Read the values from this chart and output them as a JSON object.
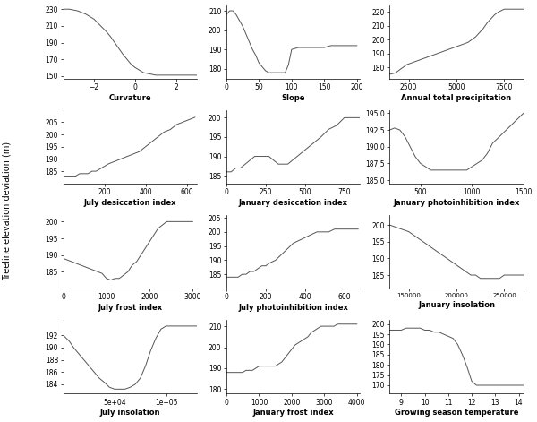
{
  "title": "",
  "ylabel": "Treeline elevation deviation (m)",
  "background_color": "#ffffff",
  "line_color": "#555555",
  "line_width": 0.7,
  "subplots": [
    {
      "xlabel": "Curvature",
      "xlim": [
        -3.5,
        3.0
      ],
      "ylim": [
        147,
        235
      ],
      "yticks": [
        150,
        170,
        190,
        210,
        230
      ],
      "xticks": [
        -2,
        0,
        2
      ],
      "x": [
        -3.5,
        -3.2,
        -3.0,
        -2.8,
        -2.6,
        -2.4,
        -2.2,
        -2.0,
        -1.8,
        -1.6,
        -1.4,
        -1.2,
        -1.0,
        -0.8,
        -0.6,
        -0.4,
        -0.2,
        0.0,
        0.2,
        0.4,
        0.6,
        0.8,
        1.0,
        1.2,
        1.4,
        1.6,
        1.8,
        2.0,
        2.2,
        2.4,
        2.6,
        2.8,
        3.0
      ],
      "y": [
        230,
        230,
        229,
        228,
        226,
        224,
        221,
        218,
        213,
        208,
        203,
        197,
        190,
        183,
        176,
        170,
        164,
        160,
        157,
        154,
        153,
        152,
        151,
        151,
        151,
        151,
        151,
        151,
        151,
        151,
        151,
        151,
        151
      ]
    },
    {
      "xlabel": "Slope",
      "xlim": [
        0,
        205
      ],
      "ylim": [
        175,
        213
      ],
      "yticks": [
        180,
        190,
        200,
        210
      ],
      "xticks": [
        0,
        50,
        100,
        150,
        200
      ],
      "x": [
        0,
        5,
        10,
        15,
        20,
        25,
        30,
        35,
        40,
        45,
        50,
        55,
        60,
        65,
        70,
        75,
        80,
        85,
        90,
        95,
        100,
        110,
        120,
        130,
        140,
        150,
        160,
        170,
        180,
        190,
        200
      ],
      "y": [
        208,
        210,
        210,
        208,
        205,
        202,
        198,
        194,
        190,
        187,
        183,
        181,
        179,
        178,
        178,
        178,
        178,
        178,
        178,
        182,
        190,
        191,
        191,
        191,
        191,
        191,
        192,
        192,
        192,
        192,
        192
      ]
    },
    {
      "xlabel": "Annual total precipitation",
      "xlim": [
        1500,
        8500
      ],
      "ylim": [
        172,
        225
      ],
      "yticks": [
        180,
        190,
        200,
        210,
        220
      ],
      "xticks": [
        2500,
        5000,
        7500
      ],
      "x": [
        1500,
        1800,
        2000,
        2200,
        2400,
        2600,
        2800,
        3000,
        3200,
        3400,
        3600,
        3800,
        4000,
        4200,
        4400,
        4600,
        4800,
        5000,
        5200,
        5400,
        5600,
        5800,
        6000,
        6200,
        6400,
        6600,
        6800,
        7000,
        7200,
        7500,
        8000,
        8500
      ],
      "y": [
        175,
        176,
        178,
        180,
        182,
        183,
        184,
        185,
        186,
        187,
        188,
        189,
        190,
        191,
        192,
        193,
        194,
        195,
        196,
        197,
        198,
        200,
        202,
        205,
        208,
        212,
        215,
        218,
        220,
        222,
        222,
        222
      ]
    },
    {
      "xlabel": "July desiccation index",
      "xlim": [
        0,
        650
      ],
      "ylim": [
        180,
        210
      ],
      "yticks": [
        185,
        190,
        195,
        200,
        205
      ],
      "xticks": [
        200,
        400,
        600
      ],
      "x": [
        0,
        10,
        20,
        40,
        60,
        80,
        100,
        120,
        140,
        160,
        180,
        200,
        220,
        250,
        280,
        310,
        340,
        370,
        400,
        430,
        460,
        490,
        520,
        550,
        580,
        610,
        640
      ],
      "y": [
        183,
        183,
        183,
        183,
        183,
        184,
        184,
        184,
        185,
        185,
        186,
        187,
        188,
        189,
        190,
        191,
        192,
        193,
        195,
        197,
        199,
        201,
        202,
        204,
        205,
        206,
        207
      ]
    },
    {
      "xlabel": "January desiccation index",
      "xlim": [
        0,
        850
      ],
      "ylim": [
        183,
        202
      ],
      "yticks": [
        185,
        190,
        195,
        200
      ],
      "xticks": [
        0,
        250,
        500,
        750
      ],
      "x": [
        0,
        30,
        60,
        90,
        120,
        150,
        180,
        210,
        240,
        270,
        300,
        330,
        360,
        390,
        420,
        450,
        480,
        510,
        540,
        570,
        600,
        650,
        700,
        750,
        800,
        850
      ],
      "y": [
        186,
        186,
        187,
        187,
        188,
        189,
        190,
        190,
        190,
        190,
        189,
        188,
        188,
        188,
        189,
        190,
        191,
        192,
        193,
        194,
        195,
        197,
        198,
        200,
        200,
        200
      ]
    },
    {
      "xlabel": "January photoinhibition index",
      "xlim": [
        200,
        1500
      ],
      "ylim": [
        184.5,
        195.5
      ],
      "yticks": [
        185.0,
        187.5,
        190.0,
        192.5,
        195.0
      ],
      "xticks": [
        500,
        1000,
        1500
      ],
      "x": [
        200,
        250,
        300,
        350,
        400,
        450,
        500,
        550,
        600,
        650,
        700,
        750,
        800,
        850,
        900,
        950,
        1000,
        1050,
        1100,
        1150,
        1200,
        1300,
        1400,
        1500
      ],
      "y": [
        192.5,
        192.8,
        192.5,
        191.5,
        190.0,
        188.5,
        187.5,
        187.0,
        186.5,
        186.5,
        186.5,
        186.5,
        186.5,
        186.5,
        186.5,
        186.5,
        187.0,
        187.5,
        188.0,
        189.0,
        190.5,
        192.0,
        193.5,
        195.0
      ]
    },
    {
      "xlabel": "July frost index",
      "xlim": [
        0,
        3100
      ],
      "ylim": [
        180,
        202
      ],
      "yticks": [
        185,
        190,
        195,
        200
      ],
      "xticks": [
        0,
        1000,
        2000,
        3000
      ],
      "x": [
        0,
        100,
        200,
        300,
        400,
        500,
        600,
        700,
        800,
        900,
        1000,
        1100,
        1200,
        1300,
        1400,
        1500,
        1600,
        1700,
        1800,
        1900,
        2000,
        2100,
        2200,
        2300,
        2400,
        2500,
        2600,
        2700,
        2800,
        2900,
        3000
      ],
      "y": [
        189,
        188.5,
        188,
        187.5,
        187,
        186.5,
        186,
        185.5,
        185,
        184.5,
        183,
        182.5,
        183,
        183,
        184,
        185,
        187,
        188,
        190,
        192,
        194,
        196,
        198,
        199,
        200,
        200,
        200,
        200,
        200,
        200,
        200
      ]
    },
    {
      "xlabel": "July photoinhibition index",
      "xlim": [
        0,
        680
      ],
      "ylim": [
        180,
        206
      ],
      "yticks": [
        185,
        190,
        195,
        200,
        205
      ],
      "xticks": [
        0,
        200,
        400,
        600
      ],
      "x": [
        0,
        20,
        40,
        60,
        80,
        100,
        120,
        140,
        160,
        180,
        200,
        220,
        250,
        280,
        310,
        340,
        370,
        400,
        430,
        460,
        490,
        520,
        550,
        580,
        610,
        640,
        670
      ],
      "y": [
        184,
        184,
        184,
        184,
        185,
        185,
        186,
        186,
        187,
        188,
        188,
        189,
        190,
        192,
        194,
        196,
        197,
        198,
        199,
        200,
        200,
        200,
        201,
        201,
        201,
        201,
        201
      ]
    },
    {
      "xlabel": "January insolation",
      "xlim": [
        130000,
        270000
      ],
      "ylim": [
        181,
        203
      ],
      "yticks": [
        185,
        190,
        195,
        200
      ],
      "xticks": [
        150000,
        200000,
        250000
      ],
      "x": [
        130000,
        140000,
        150000,
        155000,
        160000,
        165000,
        170000,
        175000,
        180000,
        185000,
        190000,
        195000,
        200000,
        205000,
        210000,
        215000,
        220000,
        225000,
        230000,
        235000,
        240000,
        245000,
        250000,
        255000,
        260000,
        265000,
        270000
      ],
      "y": [
        200,
        199,
        198,
        197,
        196,
        195,
        194,
        193,
        192,
        191,
        190,
        189,
        188,
        187,
        186,
        185,
        185,
        184,
        184,
        184,
        184,
        184,
        185,
        185,
        185,
        185,
        185
      ]
    },
    {
      "xlabel": "July insolation",
      "xlim": [
        0,
        130000
      ],
      "ylim": [
        182.5,
        194.5
      ],
      "yticks": [
        184,
        186,
        188,
        190,
        192
      ],
      "xticks": [
        50000,
        100000
      ],
      "xtick_labels": [
        "5e+04",
        "1e+05"
      ],
      "x": [
        0,
        3000,
        6000,
        10000,
        15000,
        20000,
        25000,
        30000,
        35000,
        40000,
        45000,
        50000,
        55000,
        60000,
        65000,
        70000,
        75000,
        80000,
        85000,
        90000,
        95000,
        100000,
        105000,
        110000,
        115000,
        120000,
        125000,
        130000
      ],
      "y": [
        192.0,
        191.5,
        191.0,
        190.0,
        189.0,
        188.0,
        187.0,
        186.0,
        185.0,
        184.3,
        183.5,
        183.2,
        183.2,
        183.2,
        183.5,
        184.0,
        185.0,
        187.0,
        189.5,
        191.5,
        193.0,
        193.5,
        193.5,
        193.5,
        193.5,
        193.5,
        193.5,
        193.5
      ]
    },
    {
      "xlabel": "January frost index",
      "xlim": [
        0,
        4100
      ],
      "ylim": [
        178,
        213
      ],
      "yticks": [
        180,
        190,
        200,
        210
      ],
      "xticks": [
        0,
        1000,
        2000,
        3000,
        4000
      ],
      "x": [
        0,
        100,
        200,
        300,
        400,
        500,
        600,
        700,
        800,
        900,
        1000,
        1100,
        1200,
        1300,
        1400,
        1500,
        1600,
        1700,
        1800,
        1900,
        2000,
        2100,
        2200,
        2300,
        2400,
        2500,
        2600,
        2700,
        2800,
        2900,
        3000,
        3100,
        3200,
        3300,
        3400,
        3500,
        3600,
        3700,
        3800,
        3900,
        4000
      ],
      "y": [
        188,
        188,
        188,
        188,
        188,
        188,
        189,
        189,
        189,
        190,
        191,
        191,
        191,
        191,
        191,
        191,
        192,
        193,
        195,
        197,
        199,
        201,
        202,
        203,
        204,
        205,
        207,
        208,
        209,
        210,
        210,
        210,
        210,
        210,
        211,
        211,
        211,
        211,
        211,
        211,
        211
      ]
    },
    {
      "xlabel": "Growing season temperature",
      "xlim": [
        8.5,
        14.2
      ],
      "ylim": [
        166,
        202
      ],
      "yticks": [
        170,
        175,
        180,
        185,
        190,
        195,
        200
      ],
      "xticks": [
        9,
        10,
        11,
        12,
        13,
        14
      ],
      "x": [
        8.5,
        8.7,
        9.0,
        9.2,
        9.4,
        9.6,
        9.8,
        10.0,
        10.2,
        10.4,
        10.6,
        10.8,
        11.0,
        11.2,
        11.4,
        11.6,
        11.8,
        12.0,
        12.2,
        12.4,
        12.6,
        12.8,
        13.0,
        13.2,
        13.4,
        13.6,
        13.8,
        14.0,
        14.2
      ],
      "y": [
        197,
        197,
        197,
        198,
        198,
        198,
        198,
        197,
        197,
        196,
        196,
        195,
        194,
        193,
        190,
        185,
        179,
        172,
        170,
        170,
        170,
        170,
        170,
        170,
        170,
        170,
        170,
        170,
        170
      ]
    }
  ]
}
